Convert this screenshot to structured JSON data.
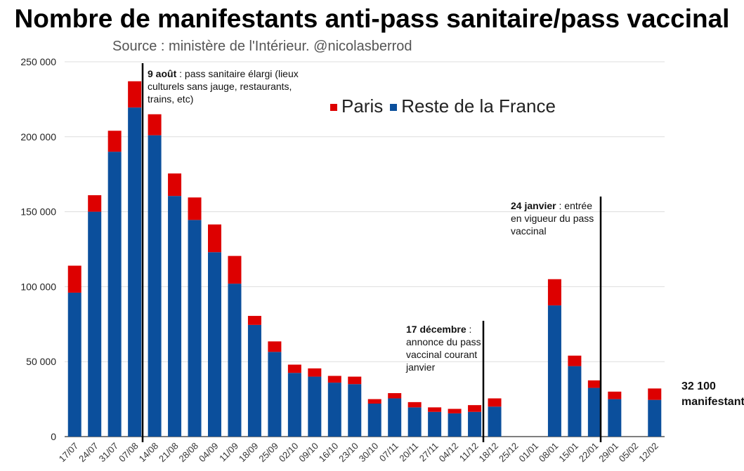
{
  "title": "Nombre de manifestants anti-pass sanitaire/pass vaccinal",
  "source": "Source : ministère de l'Intérieur. @nicolasberrod",
  "colors": {
    "paris": "#dd0000",
    "reste": "#0b4f9c"
  },
  "annotations": [
    {
      "bold": "9 août",
      "text": " : pass sanitaire élargi (lieux culturels sans jauge, restaurants, trains, etc)"
    },
    {
      "bold": "17 décembre",
      "text": " : annonce du pass vaccinal courant janvier"
    },
    {
      "bold": "24 janvier",
      "text": " : entrée en vigueur du pass vaccinal"
    }
  ],
  "end_label": {
    "line1": "32 100",
    "line2": "manifestants"
  },
  "chart_data": {
    "type": "bar",
    "stacked": true,
    "title": "Nombre de manifestants anti-pass sanitaire/pass vaccinal",
    "ylim": [
      0,
      250000
    ],
    "yticks": [
      "0",
      "50 000",
      "100 000",
      "150 000",
      "200 000",
      "250 000"
    ],
    "grid": true,
    "legend": "top-center",
    "categories": [
      "17/07",
      "24/07",
      "31/07",
      "07/08",
      "14/08",
      "21/08",
      "28/08",
      "04/09",
      "11/09",
      "18/09",
      "25/09",
      "02/10",
      "09/10",
      "16/10",
      "23/10",
      "30/10",
      "07/11",
      "20/11",
      "27/11",
      "04/12",
      "11/12",
      "18/12",
      "25/12",
      "01/01",
      "08/01",
      "15/01",
      "22/01",
      "29/01",
      "05/02",
      "12/02"
    ],
    "series": [
      {
        "name": "Reste de la France",
        "values": [
          96000,
          150000,
          190000,
          219500,
          201000,
          160500,
          144500,
          123000,
          102000,
          74500,
          56500,
          42500,
          40000,
          36000,
          35000,
          22000,
          25500,
          19500,
          16500,
          15500,
          16500,
          20000,
          0,
          0,
          87500,
          47000,
          32500,
          25000,
          0,
          24500
        ]
      },
      {
        "name": "Paris",
        "values": [
          18000,
          11000,
          14000,
          17500,
          14000,
          15000,
          15000,
          18500,
          18500,
          6000,
          7000,
          5500,
          5500,
          4500,
          5000,
          3000,
          3500,
          3500,
          3000,
          3000,
          4500,
          5500,
          0,
          0,
          17500,
          7000,
          5000,
          5000,
          0,
          7600
        ]
      }
    ]
  }
}
